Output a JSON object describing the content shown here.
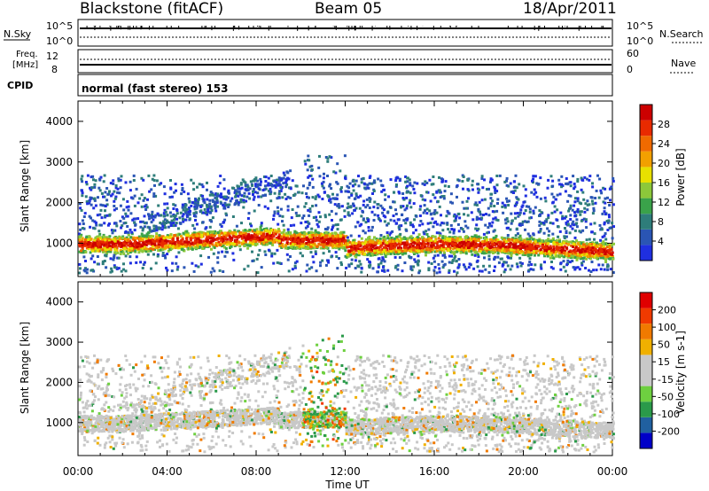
{
  "header": {
    "station": "Blackstone (fitACF)",
    "beam": "Beam 05",
    "date": "18/Apr/2011"
  },
  "sky_panel": {
    "left_label": "N.Sky",
    "right_label": "N.Search",
    "ticks": [
      "10^5",
      "10^0"
    ]
  },
  "freq_panel": {
    "left_label_1": "Freq.",
    "left_label_2": "[MHz]",
    "left_ticks": [
      "12",
      "8"
    ],
    "right_label": "Nave",
    "right_ticks": [
      "60",
      "0"
    ]
  },
  "cpid": {
    "label": "CPID",
    "value": "normal (fast stereo) 153"
  },
  "x_axis": {
    "label": "Time UT",
    "ticks": [
      "00:00",
      "04:00",
      "08:00",
      "12:00",
      "16:00",
      "20:00",
      "00:00"
    ]
  },
  "chart_data": [
    {
      "type": "heatmap",
      "panel": "power",
      "ylabel": "Slant Range [km]",
      "y_ticks": [
        "1000",
        "2000",
        "3000",
        "4000"
      ],
      "ylim": [
        180,
        4500
      ],
      "xlim_hours": [
        0,
        24
      ],
      "colorbar": {
        "label": "Power [dB]",
        "ticks": [
          "4",
          "8",
          "12",
          "16",
          "20",
          "24",
          "28"
        ],
        "colors": [
          "#1f2fe0",
          "#2a55b4",
          "#2e7d7a",
          "#3aa24a",
          "#8cc83a",
          "#e8e000",
          "#f2a000",
          "#ef6a00",
          "#e82a00",
          "#cc0000"
        ]
      },
      "features": [
        {
          "desc": "main band",
          "t_start": 0,
          "t_end": 24,
          "range_km": [
            800,
            1300
          ]
        },
        {
          "desc": "rising band",
          "t_start": 2,
          "t_end": 9,
          "range_km": [
            1300,
            2600
          ]
        },
        {
          "desc": "near-noon spike",
          "t_start": 10,
          "t_end": 12,
          "range_km": [
            500,
            3000
          ]
        }
      ]
    },
    {
      "type": "heatmap",
      "panel": "velocity",
      "ylabel": "Slant Range [km]",
      "y_ticks": [
        "1000",
        "2000",
        "3000",
        "4000"
      ],
      "ylim": [
        180,
        4500
      ],
      "xlim_hours": [
        0,
        24
      ],
      "colorbar": {
        "label": "Velocity [m s-1]",
        "ticks": [
          "200",
          "100",
          "50",
          "15",
          "-15",
          "-50",
          "-100",
          "-200"
        ],
        "colors": [
          "#0000c8",
          "#2060a0",
          "#2a9a4a",
          "#6ed040",
          "#c8c8c8",
          "#c8c8c8",
          "#f0b000",
          "#f07a00",
          "#f03a00",
          "#e00000"
        ]
      }
    }
  ]
}
